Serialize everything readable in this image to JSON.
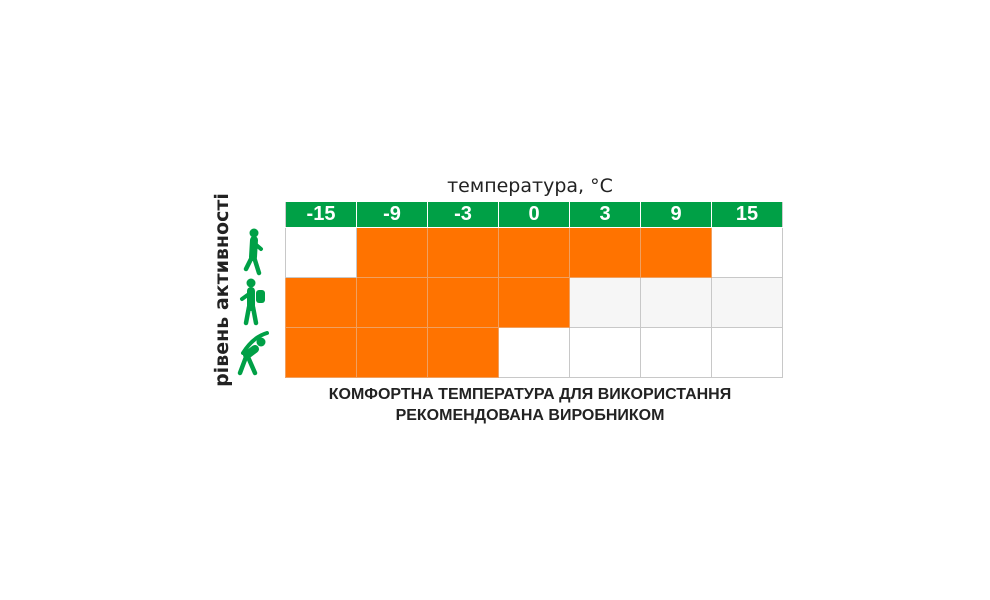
{
  "title": "температура, °C",
  "y_label": "рівень активності",
  "temperatures": [
    "-15",
    "-9",
    "-3",
    "0",
    "3",
    "9",
    "15"
  ],
  "rows": [
    {
      "activity_icon": "walking-icon",
      "cells": [
        "off",
        "on",
        "on",
        "on",
        "on",
        "on",
        "off"
      ]
    },
    {
      "activity_icon": "hiking-backpack-icon",
      "cells": [
        "on",
        "on",
        "on",
        "on",
        "grey",
        "grey",
        "grey"
      ]
    },
    {
      "activity_icon": "stretching-exercise-icon",
      "cells": [
        "on",
        "on",
        "on",
        "off",
        "off",
        "off",
        "off"
      ]
    }
  ],
  "footer": [
    "КОМФОРТНА ТЕМПЕРАТУРА ДЛЯ ВИКОРИСТАННЯ",
    "РЕКОМЕНДОВАНА ВИРОБНИКОМ"
  ],
  "colors": {
    "header": "#00a046",
    "comfort": "#ff7300",
    "icon": "#00a046"
  }
}
